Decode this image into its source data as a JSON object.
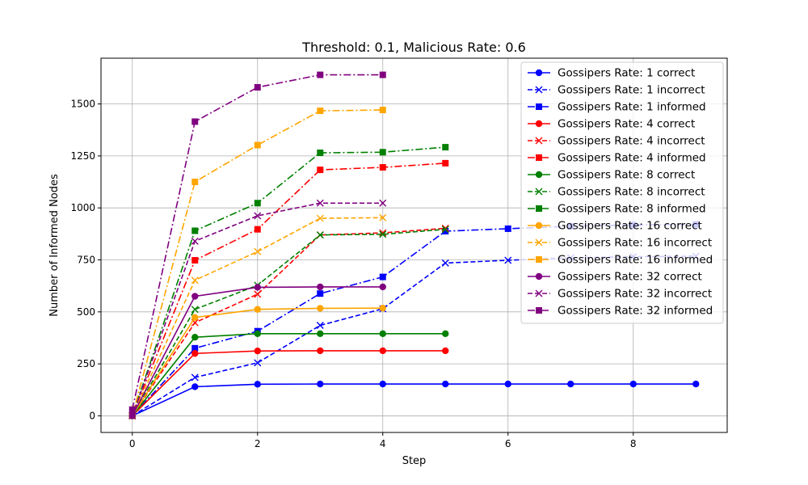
{
  "chart_data": {
    "type": "line",
    "title": "Threshold: 0.1, Malicious Rate: 0.6",
    "xlabel": "Step",
    "ylabel": "Number of Informed Nodes",
    "xlim": [
      -0.5,
      9.5
    ],
    "ylim": [
      -80,
      1720
    ],
    "xticks": [
      0,
      2,
      4,
      6,
      8
    ],
    "yticks": [
      0,
      250,
      500,
      750,
      1000,
      1250,
      1500
    ],
    "grid": true,
    "legend_position": "top-right",
    "series": [
      {
        "name": "Gossipers Rate: 1 correct",
        "color": "#0000ff",
        "line": "solid",
        "marker": "circle",
        "x": [
          0,
          1,
          2,
          3,
          4,
          5,
          6,
          7,
          8,
          9
        ],
        "y": [
          0,
          140,
          152,
          153,
          153,
          153,
          153,
          153,
          153,
          153
        ]
      },
      {
        "name": "Gossipers Rate: 1 incorrect",
        "color": "#0000ff",
        "line": "dashed",
        "marker": "x",
        "x": [
          0,
          1,
          2,
          3,
          4,
          5,
          6,
          7,
          8,
          9
        ],
        "y": [
          0,
          185,
          255,
          435,
          515,
          735,
          748,
          760,
          765,
          768
        ]
      },
      {
        "name": "Gossipers Rate: 1 informed",
        "color": "#0000ff",
        "line": "dashdot",
        "marker": "square",
        "x": [
          0,
          1,
          2,
          3,
          4,
          5,
          6,
          7,
          8,
          9
        ],
        "y": [
          0,
          325,
          407,
          588,
          668,
          888,
          900,
          912,
          918,
          921
        ]
      },
      {
        "name": "Gossipers Rate: 4 correct",
        "color": "#ff0000",
        "line": "solid",
        "marker": "circle",
        "x": [
          0,
          1,
          2,
          3,
          4,
          5
        ],
        "y": [
          0,
          300,
          312,
          313,
          313,
          313
        ]
      },
      {
        "name": "Gossipers Rate: 4 incorrect",
        "color": "#ff0000",
        "line": "dashed",
        "marker": "x",
        "x": [
          0,
          1,
          2,
          3,
          4,
          5
        ],
        "y": [
          0,
          448,
          585,
          870,
          880,
          902
        ]
      },
      {
        "name": "Gossipers Rate: 4 informed",
        "color": "#ff0000",
        "line": "dashdot",
        "marker": "square",
        "x": [
          0,
          1,
          2,
          3,
          4,
          5
        ],
        "y": [
          0,
          748,
          897,
          1183,
          1195,
          1215
        ]
      },
      {
        "name": "Gossipers Rate: 8 correct",
        "color": "#008000",
        "line": "solid",
        "marker": "circle",
        "x": [
          0,
          1,
          2,
          3,
          4,
          5
        ],
        "y": [
          0,
          378,
          395,
          395,
          395,
          395
        ]
      },
      {
        "name": "Gossipers Rate: 8 incorrect",
        "color": "#008000",
        "line": "dashed",
        "marker": "x",
        "x": [
          0,
          1,
          2,
          3,
          4,
          5
        ],
        "y": [
          0,
          512,
          628,
          870,
          873,
          897
        ]
      },
      {
        "name": "Gossipers Rate: 8 informed",
        "color": "#008000",
        "line": "dashdot",
        "marker": "square",
        "x": [
          0,
          1,
          2,
          3,
          4,
          5
        ],
        "y": [
          0,
          890,
          1023,
          1265,
          1268,
          1292
        ]
      },
      {
        "name": "Gossipers Rate: 16 correct",
        "color": "#ffa500",
        "line": "solid",
        "marker": "circle",
        "x": [
          0,
          1,
          2,
          3,
          4
        ],
        "y": [
          0,
          473,
          512,
          517,
          518
        ]
      },
      {
        "name": "Gossipers Rate: 16 incorrect",
        "color": "#ffa500",
        "line": "dashed",
        "marker": "x",
        "x": [
          0,
          1,
          2,
          3,
          4
        ],
        "y": [
          0,
          652,
          790,
          950,
          953
        ]
      },
      {
        "name": "Gossipers Rate: 16 informed",
        "color": "#ffa500",
        "line": "dashdot",
        "marker": "square",
        "x": [
          0,
          1,
          2,
          3,
          4
        ],
        "y": [
          0,
          1125,
          1302,
          1467,
          1471
        ]
      },
      {
        "name": "Gossipers Rate: 32 correct",
        "color": "#800080",
        "line": "solid",
        "marker": "circle",
        "x": [
          0,
          1,
          2,
          3,
          4
        ],
        "y": [
          0,
          575,
          618,
          620,
          620
        ]
      },
      {
        "name": "Gossipers Rate: 32 incorrect",
        "color": "#800080",
        "line": "dashed",
        "marker": "x",
        "x": [
          0,
          1,
          2,
          3,
          4
        ],
        "y": [
          0,
          840,
          962,
          1023,
          1023
        ]
      },
      {
        "name": "Gossipers Rate: 32 informed",
        "color": "#800080",
        "line": "dashdot",
        "marker": "square",
        "x": [
          0,
          1,
          2,
          3,
          4
        ],
        "y": [
          30,
          1415,
          1580,
          1640,
          1640
        ]
      }
    ]
  }
}
